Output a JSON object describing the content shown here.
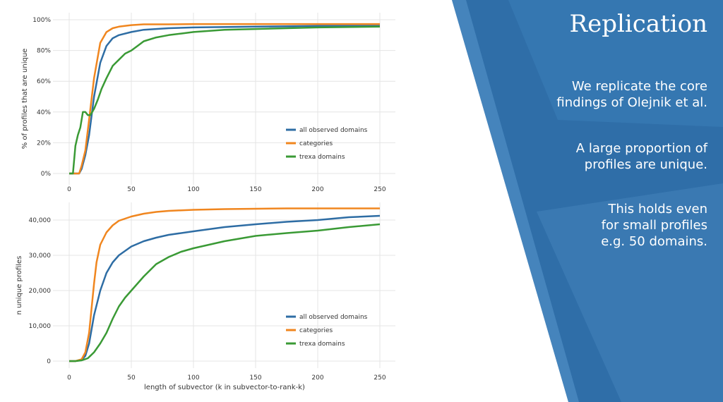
{
  "slide": {
    "title": "Replication",
    "paragraphs": [
      "We replicate the core\nfindings of Olejnik et al.",
      "A large proportion of\nprofiles are unique.",
      "This holds even\nfor small profiles\ne.g. 50 domains."
    ],
    "colors": {
      "panel_blue": "#2f6ea8",
      "panel_light": "#4f8fc6"
    }
  },
  "chart_data": [
    {
      "type": "line",
      "ylabel": "% of profiles that are unique",
      "xlabel": "",
      "xlim": [
        0,
        250
      ],
      "ylim": [
        0,
        100
      ],
      "x_ticks": [
        "0",
        "50",
        "100",
        "150",
        "200",
        "250"
      ],
      "y_ticks": [
        "0%",
        "20%",
        "40%",
        "60%",
        "80%",
        "100%"
      ],
      "y_tick_values": [
        0,
        20,
        40,
        60,
        80,
        100
      ],
      "grid": true,
      "legend_position": "lower-right",
      "series": [
        {
          "name": "all observed domains",
          "color": "#2e6da4",
          "x": [
            0,
            5,
            8,
            10,
            13,
            16,
            20,
            25,
            30,
            35,
            40,
            50,
            60,
            80,
            100,
            150,
            200,
            250
          ],
          "y": [
            0,
            0,
            0,
            3,
            12,
            25,
            50,
            72,
            83,
            88,
            90,
            92,
            93.5,
            94.5,
            95,
            95.5,
            96,
            96
          ]
        },
        {
          "name": "categories",
          "color": "#f0861f",
          "x": [
            0,
            5,
            8,
            10,
            13,
            16,
            20,
            25,
            30,
            35,
            40,
            50,
            60,
            80,
            100,
            150,
            200,
            250
          ],
          "y": [
            0,
            0,
            0,
            5,
            15,
            35,
            62,
            85,
            92,
            94.5,
            95.5,
            96.5,
            97,
            97,
            97.2,
            97.2,
            97.2,
            97.2
          ]
        },
        {
          "name": "trexa domains",
          "color": "#3a9a35",
          "x": [
            0,
            3,
            5,
            7,
            9,
            11,
            13,
            15,
            17,
            20,
            23,
            26,
            30,
            35,
            40,
            45,
            50,
            55,
            60,
            70,
            80,
            90,
            100,
            125,
            150,
            200,
            250
          ],
          "y": [
            0,
            0,
            18,
            25,
            30,
            40,
            40,
            38,
            38,
            42,
            48,
            55,
            62,
            70,
            74,
            78,
            80,
            83,
            86,
            88.5,
            90,
            91,
            92,
            93.5,
            94,
            95,
            95.5
          ]
        }
      ]
    },
    {
      "type": "line",
      "ylabel": "n unique profiles",
      "xlabel": "length of subvector (k in subvector-to-rank-k)",
      "xlim": [
        0,
        250
      ],
      "ylim": [
        0,
        43000
      ],
      "x_ticks": [
        "0",
        "50",
        "100",
        "150",
        "200",
        "250"
      ],
      "y_ticks": [
        "0",
        "10,000",
        "20,000",
        "30,000",
        "40,000"
      ],
      "y_tick_values": [
        0,
        10000,
        20000,
        30000,
        40000
      ],
      "grid": true,
      "legend_position": "lower-right",
      "series": [
        {
          "name": "all observed domains",
          "color": "#2e6da4",
          "x": [
            0,
            5,
            10,
            13,
            16,
            20,
            25,
            30,
            35,
            40,
            50,
            60,
            70,
            80,
            100,
            125,
            150,
            175,
            200,
            225,
            250
          ],
          "y": [
            0,
            0,
            300,
            1500,
            5000,
            13000,
            20000,
            25000,
            28000,
            30000,
            32500,
            34000,
            35000,
            35800,
            36800,
            38000,
            38800,
            39500,
            40000,
            40800,
            41200
          ]
        },
        {
          "name": "categories",
          "color": "#f0861f",
          "x": [
            0,
            5,
            10,
            13,
            16,
            18,
            20,
            22,
            25,
            30,
            35,
            40,
            50,
            60,
            70,
            80,
            100,
            125,
            150,
            175,
            200,
            225,
            250
          ],
          "y": [
            0,
            0,
            500,
            2500,
            8000,
            15000,
            22000,
            28000,
            33000,
            36500,
            38500,
            39800,
            41000,
            41800,
            42300,
            42600,
            42900,
            43100,
            43200,
            43300,
            43300,
            43300,
            43300
          ]
        },
        {
          "name": "trexa domains",
          "color": "#3a9a35",
          "x": [
            0,
            5,
            10,
            15,
            20,
            25,
            30,
            35,
            40,
            45,
            50,
            55,
            60,
            70,
            80,
            90,
            100,
            125,
            150,
            175,
            200,
            225,
            250
          ],
          "y": [
            0,
            0,
            200,
            800,
            2500,
            5000,
            8000,
            12000,
            15500,
            18000,
            20000,
            22000,
            24000,
            27500,
            29500,
            31000,
            32000,
            34000,
            35500,
            36300,
            37000,
            38000,
            38800
          ]
        }
      ]
    }
  ]
}
